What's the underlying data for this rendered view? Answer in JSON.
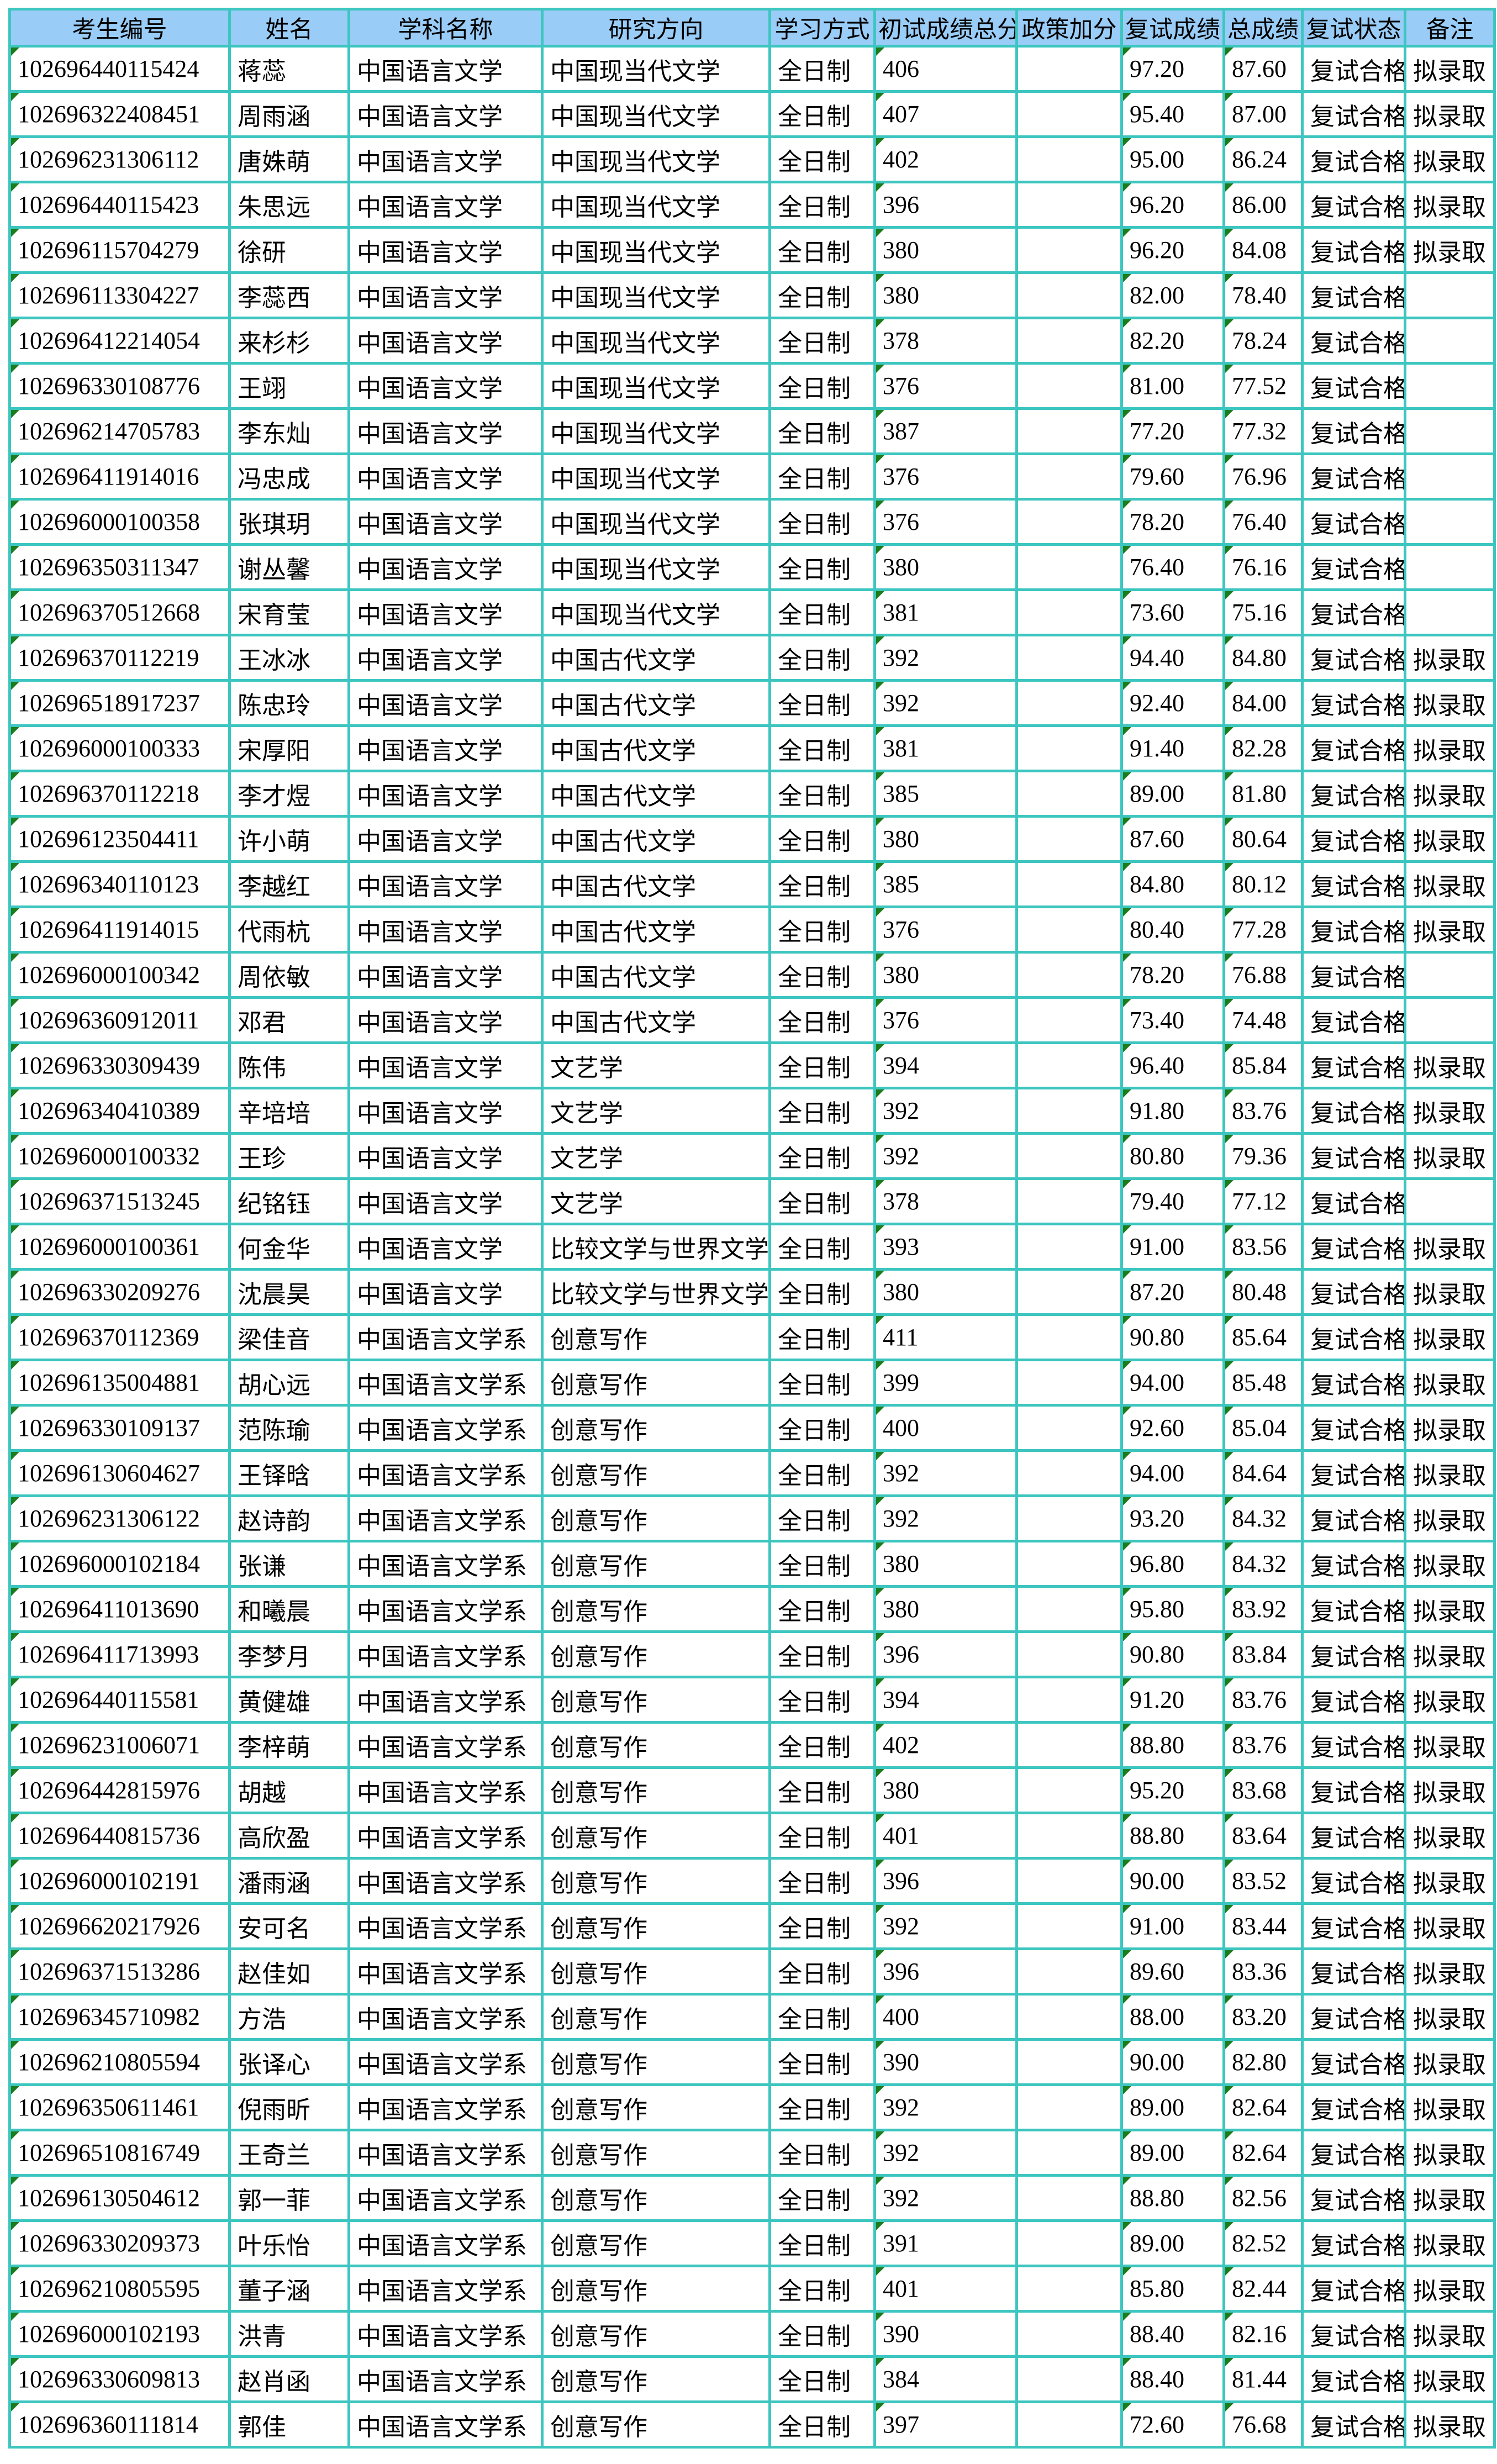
{
  "colors": {
    "grid_border": "#3DC6C0",
    "header_background": "#99CCF7",
    "cell_background": "#FFFFFF",
    "text": "#000000",
    "corner_flag_green": "#1C7C1C"
  },
  "table": {
    "columns": [
      {
        "key": "candidate_no",
        "label": "考生编号"
      },
      {
        "key": "name",
        "label": "姓名"
      },
      {
        "key": "subject",
        "label": "学科名称"
      },
      {
        "key": "direction",
        "label": "研究方向"
      },
      {
        "key": "study_mode",
        "label": "学习方式"
      },
      {
        "key": "initial_score",
        "label": "初试成绩总分"
      },
      {
        "key": "policy_bonus",
        "label": "政策加分"
      },
      {
        "key": "retest_score",
        "label": "复试成绩"
      },
      {
        "key": "total_score",
        "label": "总成绩"
      },
      {
        "key": "retest_status",
        "label": "复试状态"
      },
      {
        "key": "remark",
        "label": "备注"
      }
    ],
    "corner_flag_columns": [
      "candidate_no",
      "initial_score",
      "retest_score",
      "total_score"
    ],
    "rows": [
      [
        "102696440115424",
        "蒋蕊",
        "中国语言文学",
        "中国现当代文学",
        "全日制",
        "406",
        "",
        "97.20",
        "87.60",
        "复试合格",
        "拟录取"
      ],
      [
        "102696322408451",
        "周雨涵",
        "中国语言文学",
        "中国现当代文学",
        "全日制",
        "407",
        "",
        "95.40",
        "87.00",
        "复试合格",
        "拟录取"
      ],
      [
        "102696231306112",
        "唐姝萌",
        "中国语言文学",
        "中国现当代文学",
        "全日制",
        "402",
        "",
        "95.00",
        "86.24",
        "复试合格",
        "拟录取"
      ],
      [
        "102696440115423",
        "朱思远",
        "中国语言文学",
        "中国现当代文学",
        "全日制",
        "396",
        "",
        "96.20",
        "86.00",
        "复试合格",
        "拟录取"
      ],
      [
        "102696115704279",
        "徐研",
        "中国语言文学",
        "中国现当代文学",
        "全日制",
        "380",
        "",
        "96.20",
        "84.08",
        "复试合格",
        "拟录取"
      ],
      [
        "102696113304227",
        "李蕊西",
        "中国语言文学",
        "中国现当代文学",
        "全日制",
        "380",
        "",
        "82.00",
        "78.40",
        "复试合格",
        ""
      ],
      [
        "102696412214054",
        "来杉杉",
        "中国语言文学",
        "中国现当代文学",
        "全日制",
        "378",
        "",
        "82.20",
        "78.24",
        "复试合格",
        ""
      ],
      [
        "102696330108776",
        "王翊",
        "中国语言文学",
        "中国现当代文学",
        "全日制",
        "376",
        "",
        "81.00",
        "77.52",
        "复试合格",
        ""
      ],
      [
        "102696214705783",
        "李东灿",
        "中国语言文学",
        "中国现当代文学",
        "全日制",
        "387",
        "",
        "77.20",
        "77.32",
        "复试合格",
        ""
      ],
      [
        "102696411914016",
        "冯忠成",
        "中国语言文学",
        "中国现当代文学",
        "全日制",
        "376",
        "",
        "79.60",
        "76.96",
        "复试合格",
        ""
      ],
      [
        "102696000100358",
        "张琪玥",
        "中国语言文学",
        "中国现当代文学",
        "全日制",
        "376",
        "",
        "78.20",
        "76.40",
        "复试合格",
        ""
      ],
      [
        "102696350311347",
        "谢丛馨",
        "中国语言文学",
        "中国现当代文学",
        "全日制",
        "380",
        "",
        "76.40",
        "76.16",
        "复试合格",
        ""
      ],
      [
        "102696370512668",
        "宋育莹",
        "中国语言文学",
        "中国现当代文学",
        "全日制",
        "381",
        "",
        "73.60",
        "75.16",
        "复试合格",
        ""
      ],
      [
        "102696370112219",
        "王冰冰",
        "中国语言文学",
        "中国古代文学",
        "全日制",
        "392",
        "",
        "94.40",
        "84.80",
        "复试合格",
        "拟录取"
      ],
      [
        "102696518917237",
        "陈忠玲",
        "中国语言文学",
        "中国古代文学",
        "全日制",
        "392",
        "",
        "92.40",
        "84.00",
        "复试合格",
        "拟录取"
      ],
      [
        "102696000100333",
        "宋厚阳",
        "中国语言文学",
        "中国古代文学",
        "全日制",
        "381",
        "",
        "91.40",
        "82.28",
        "复试合格",
        "拟录取"
      ],
      [
        "102696370112218",
        "李才煜",
        "中国语言文学",
        "中国古代文学",
        "全日制",
        "385",
        "",
        "89.00",
        "81.80",
        "复试合格",
        "拟录取"
      ],
      [
        "102696123504411",
        "许小萌",
        "中国语言文学",
        "中国古代文学",
        "全日制",
        "380",
        "",
        "87.60",
        "80.64",
        "复试合格",
        "拟录取"
      ],
      [
        "102696340110123",
        "李越红",
        "中国语言文学",
        "中国古代文学",
        "全日制",
        "385",
        "",
        "84.80",
        "80.12",
        "复试合格",
        "拟录取"
      ],
      [
        "102696411914015",
        "代雨杭",
        "中国语言文学",
        "中国古代文学",
        "全日制",
        "376",
        "",
        "80.40",
        "77.28",
        "复试合格",
        "拟录取"
      ],
      [
        "102696000100342",
        "周依敏",
        "中国语言文学",
        "中国古代文学",
        "全日制",
        "380",
        "",
        "78.20",
        "76.88",
        "复试合格",
        ""
      ],
      [
        "102696360912011",
        "邓君",
        "中国语言文学",
        "中国古代文学",
        "全日制",
        "376",
        "",
        "73.40",
        "74.48",
        "复试合格",
        ""
      ],
      [
        "102696330309439",
        "陈伟",
        "中国语言文学",
        "文艺学",
        "全日制",
        "394",
        "",
        "96.40",
        "85.84",
        "复试合格",
        "拟录取"
      ],
      [
        "102696340410389",
        "辛培培",
        "中国语言文学",
        "文艺学",
        "全日制",
        "392",
        "",
        "91.80",
        "83.76",
        "复试合格",
        "拟录取"
      ],
      [
        "102696000100332",
        "王珍",
        "中国语言文学",
        "文艺学",
        "全日制",
        "392",
        "",
        "80.80",
        "79.36",
        "复试合格",
        "拟录取"
      ],
      [
        "102696371513245",
        "纪铭钰",
        "中国语言文学",
        "文艺学",
        "全日制",
        "378",
        "",
        "79.40",
        "77.12",
        "复试合格",
        ""
      ],
      [
        "102696000100361",
        "何金华",
        "中国语言文学",
        "比较文学与世界文学",
        "全日制",
        "393",
        "",
        "91.00",
        "83.56",
        "复试合格",
        "拟录取"
      ],
      [
        "102696330209276",
        "沈晨昊",
        "中国语言文学",
        "比较文学与世界文学",
        "全日制",
        "380",
        "",
        "87.20",
        "80.48",
        "复试合格",
        "拟录取"
      ],
      [
        "102696370112369",
        "梁佳音",
        "中国语言文学系",
        "创意写作",
        "全日制",
        "411",
        "",
        "90.80",
        "85.64",
        "复试合格",
        "拟录取"
      ],
      [
        "102696135004881",
        "胡心远",
        "中国语言文学系",
        "创意写作",
        "全日制",
        "399",
        "",
        "94.00",
        "85.48",
        "复试合格",
        "拟录取"
      ],
      [
        "102696330109137",
        "范陈瑜",
        "中国语言文学系",
        "创意写作",
        "全日制",
        "400",
        "",
        "92.60",
        "85.04",
        "复试合格",
        "拟录取"
      ],
      [
        "102696130604627",
        "王铎晗",
        "中国语言文学系",
        "创意写作",
        "全日制",
        "392",
        "",
        "94.00",
        "84.64",
        "复试合格",
        "拟录取"
      ],
      [
        "102696231306122",
        "赵诗韵",
        "中国语言文学系",
        "创意写作",
        "全日制",
        "392",
        "",
        "93.20",
        "84.32",
        "复试合格",
        "拟录取"
      ],
      [
        "102696000102184",
        "张谦",
        "中国语言文学系",
        "创意写作",
        "全日制",
        "380",
        "",
        "96.80",
        "84.32",
        "复试合格",
        "拟录取"
      ],
      [
        "102696411013690",
        "和曦晨",
        "中国语言文学系",
        "创意写作",
        "全日制",
        "380",
        "",
        "95.80",
        "83.92",
        "复试合格",
        "拟录取"
      ],
      [
        "102696411713993",
        "李梦月",
        "中国语言文学系",
        "创意写作",
        "全日制",
        "396",
        "",
        "90.80",
        "83.84",
        "复试合格",
        "拟录取"
      ],
      [
        "102696440115581",
        "黄健雄",
        "中国语言文学系",
        "创意写作",
        "全日制",
        "394",
        "",
        "91.20",
        "83.76",
        "复试合格",
        "拟录取"
      ],
      [
        "102696231006071",
        "李梓萌",
        "中国语言文学系",
        "创意写作",
        "全日制",
        "402",
        "",
        "88.80",
        "83.76",
        "复试合格",
        "拟录取"
      ],
      [
        "102696442815976",
        "胡越",
        "中国语言文学系",
        "创意写作",
        "全日制",
        "380",
        "",
        "95.20",
        "83.68",
        "复试合格",
        "拟录取"
      ],
      [
        "102696440815736",
        "高欣盈",
        "中国语言文学系",
        "创意写作",
        "全日制",
        "401",
        "",
        "88.80",
        "83.64",
        "复试合格",
        "拟录取"
      ],
      [
        "102696000102191",
        "潘雨涵",
        "中国语言文学系",
        "创意写作",
        "全日制",
        "396",
        "",
        "90.00",
        "83.52",
        "复试合格",
        "拟录取"
      ],
      [
        "102696620217926",
        "安可名",
        "中国语言文学系",
        "创意写作",
        "全日制",
        "392",
        "",
        "91.00",
        "83.44",
        "复试合格",
        "拟录取"
      ],
      [
        "102696371513286",
        "赵佳如",
        "中国语言文学系",
        "创意写作",
        "全日制",
        "396",
        "",
        "89.60",
        "83.36",
        "复试合格",
        "拟录取"
      ],
      [
        "102696345710982",
        "方浩",
        "中国语言文学系",
        "创意写作",
        "全日制",
        "400",
        "",
        "88.00",
        "83.20",
        "复试合格",
        "拟录取"
      ],
      [
        "102696210805594",
        "张译心",
        "中国语言文学系",
        "创意写作",
        "全日制",
        "390",
        "",
        "90.00",
        "82.80",
        "复试合格",
        "拟录取"
      ],
      [
        "102696350611461",
        "倪雨昕",
        "中国语言文学系",
        "创意写作",
        "全日制",
        "392",
        "",
        "89.00",
        "82.64",
        "复试合格",
        "拟录取"
      ],
      [
        "102696510816749",
        "王奇兰",
        "中国语言文学系",
        "创意写作",
        "全日制",
        "392",
        "",
        "89.00",
        "82.64",
        "复试合格",
        "拟录取"
      ],
      [
        "102696130504612",
        "郭一菲",
        "中国语言文学系",
        "创意写作",
        "全日制",
        "392",
        "",
        "88.80",
        "82.56",
        "复试合格",
        "拟录取"
      ],
      [
        "102696330209373",
        "叶乐怡",
        "中国语言文学系",
        "创意写作",
        "全日制",
        "391",
        "",
        "89.00",
        "82.52",
        "复试合格",
        "拟录取"
      ],
      [
        "102696210805595",
        "董子涵",
        "中国语言文学系",
        "创意写作",
        "全日制",
        "401",
        "",
        "85.80",
        "82.44",
        "复试合格",
        "拟录取"
      ],
      [
        "102696000102193",
        "洪青",
        "中国语言文学系",
        "创意写作",
        "全日制",
        "390",
        "",
        "88.40",
        "82.16",
        "复试合格",
        "拟录取"
      ],
      [
        "102696330609813",
        "赵肖函",
        "中国语言文学系",
        "创意写作",
        "全日制",
        "384",
        "",
        "88.40",
        "81.44",
        "复试合格",
        "拟录取"
      ],
      [
        "102696360111814",
        "郭佳",
        "中国语言文学系",
        "创意写作",
        "全日制",
        "397",
        "",
        "72.60",
        "76.68",
        "复试合格",
        "拟录取"
      ]
    ]
  }
}
